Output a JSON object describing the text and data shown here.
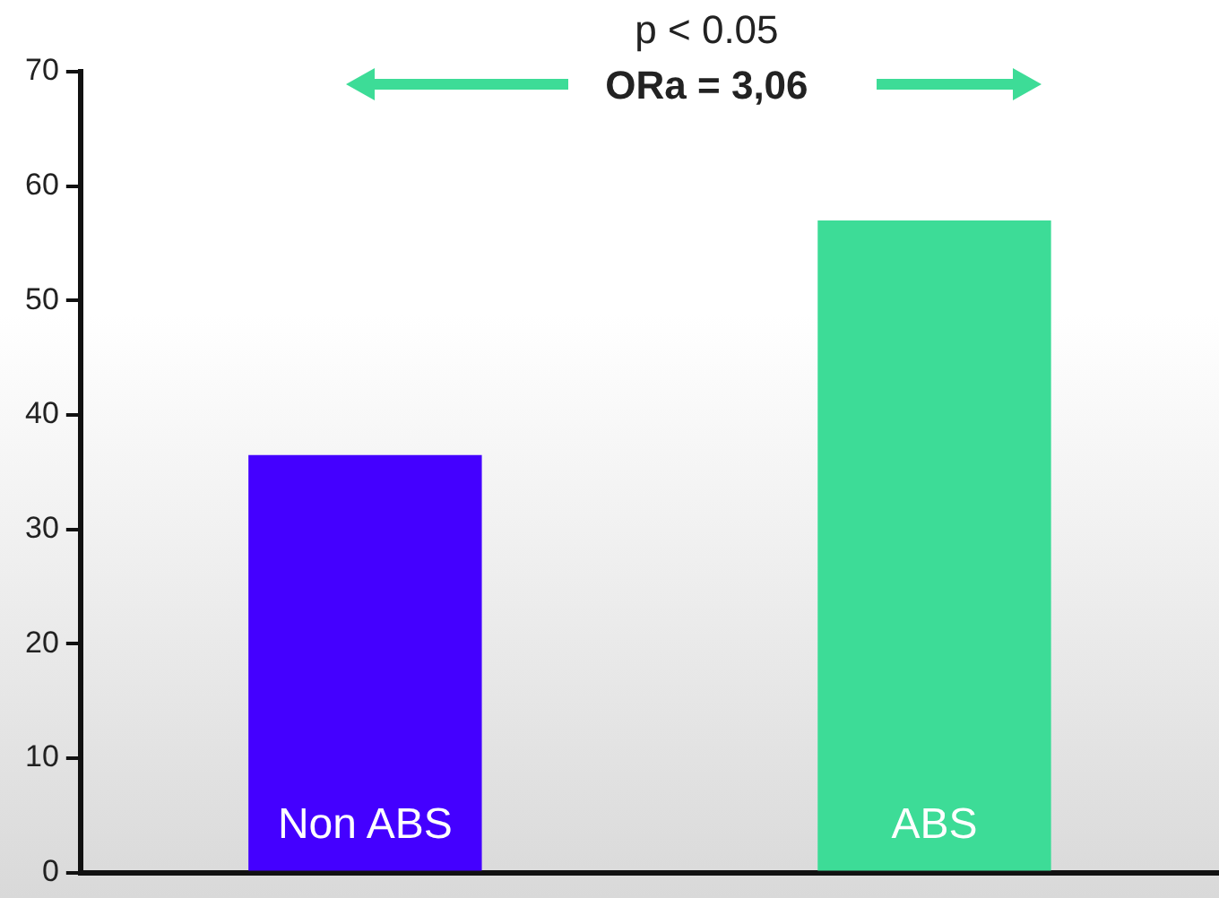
{
  "chart_data": {
    "type": "bar",
    "categories": [
      "Non ABS",
      "ABS"
    ],
    "values": [
      36.5,
      57
    ],
    "colors": [
      "#4400ff",
      "#3ddc97"
    ],
    "ylim": [
      0,
      70
    ],
    "yticks": [
      0,
      10,
      20,
      30,
      40,
      50,
      60,
      70
    ],
    "grid": false,
    "legend": false,
    "annotations": [
      "p < 0.05",
      "ORa = 3,06"
    ]
  }
}
